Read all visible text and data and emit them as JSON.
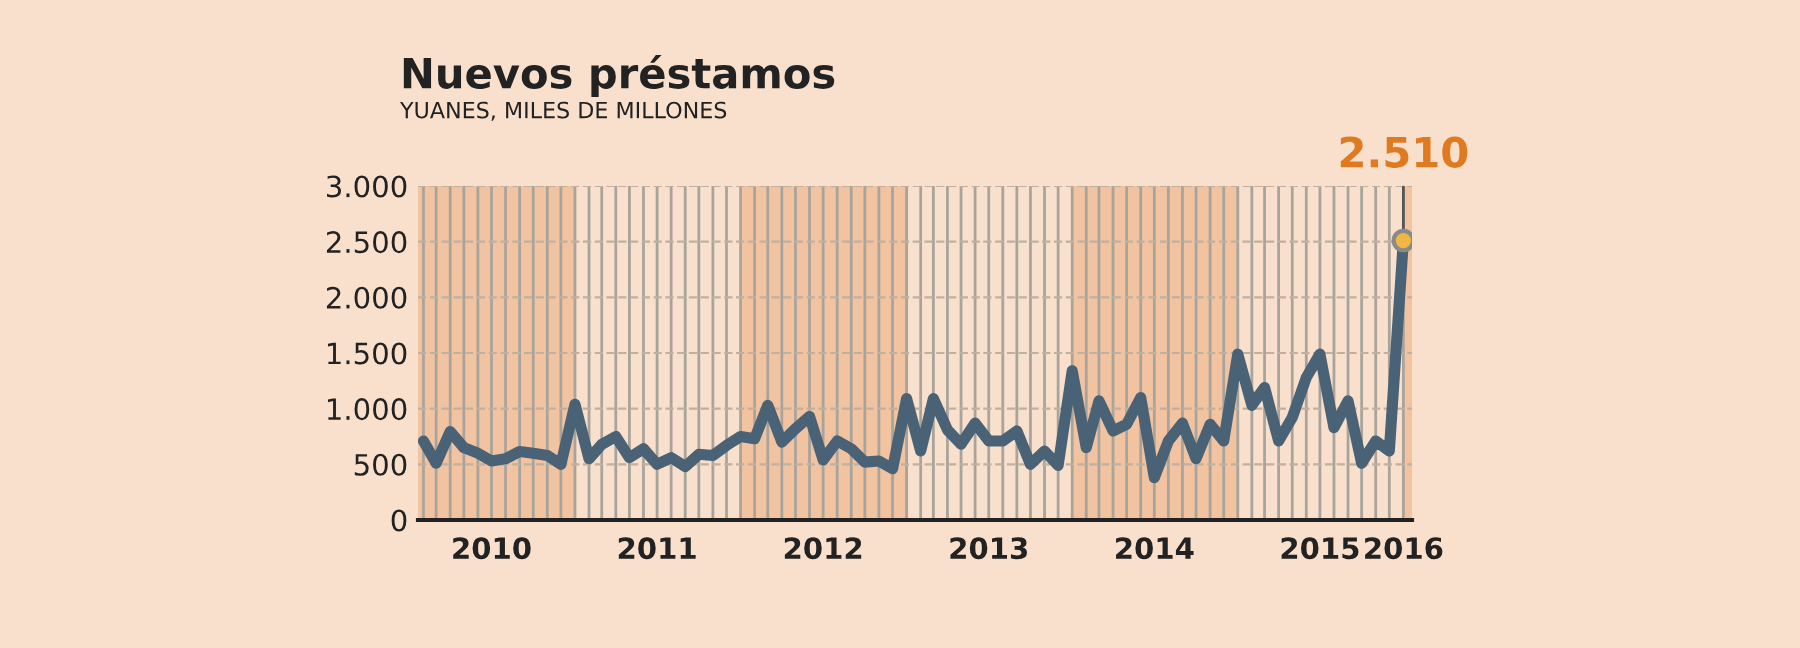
{
  "chart_data": {
    "type": "line",
    "title": "Nuevos préstamos",
    "subtitle": "YUANES, MILES DE MILLONES",
    "x": [
      "2010-02",
      "2010-03",
      "2010-04",
      "2010-05",
      "2010-06",
      "2010-07",
      "2010-08",
      "2010-09",
      "2010-10",
      "2010-11",
      "2010-12",
      "2011-01",
      "2011-02",
      "2011-03",
      "2011-04",
      "2011-05",
      "2011-06",
      "2011-07",
      "2011-08",
      "2011-09",
      "2011-10",
      "2011-11",
      "2011-12",
      "2012-01",
      "2012-02",
      "2012-03",
      "2012-04",
      "2012-05",
      "2012-06",
      "2012-07",
      "2012-08",
      "2012-09",
      "2012-10",
      "2012-11",
      "2012-12",
      "2013-01",
      "2013-02",
      "2013-03",
      "2013-04",
      "2013-05",
      "2013-06",
      "2013-07",
      "2013-08",
      "2013-09",
      "2013-10",
      "2013-11",
      "2013-12",
      "2014-01",
      "2014-02",
      "2014-03",
      "2014-04",
      "2014-05",
      "2014-06",
      "2014-07",
      "2014-08",
      "2014-09",
      "2014-10",
      "2014-11",
      "2014-12",
      "2015-01",
      "2015-02",
      "2015-03",
      "2015-04",
      "2015-05",
      "2015-06",
      "2015-07",
      "2015-08",
      "2015-09",
      "2015-10",
      "2015-11",
      "2015-12",
      "2016-01"
    ],
    "series": [
      {
        "color": "#4a6275",
        "values": [
          710,
          510,
          795,
          650,
          600,
          530,
          550,
          615,
          600,
          580,
          500,
          1040,
          550,
          680,
          750,
          560,
          640,
          500,
          560,
          480,
          590,
          580,
          670,
          750,
          730,
          1030,
          700,
          820,
          930,
          540,
          710,
          640,
          520,
          530,
          460,
          1090,
          620,
          1090,
          810,
          680,
          870,
          710,
          710,
          800,
          500,
          620,
          490,
          1340,
          650,
          1070,
          800,
          860,
          1100,
          380,
          710,
          870,
          550,
          860,
          710,
          1490,
          1030,
          1190,
          710,
          920,
          1280,
          1490,
          830,
          1070,
          510,
          710,
          620,
          2510
        ]
      }
    ],
    "xlim": [
      "2010-01-20",
      "2016-01-20"
    ],
    "ylim": [
      0,
      3000
    ],
    "yticks": [
      0,
      {
        "value": 500,
        "label": "500"
      },
      {
        "value": 1000,
        "label": "1.000"
      },
      {
        "value": 1500,
        "label": "1.500"
      },
      {
        "value": 2000,
        "label": "2.000"
      },
      {
        "value": 2500,
        "label": "2.500"
      },
      {
        "value": 3000,
        "label": "3.000"
      }
    ],
    "xticks": [
      {
        "value": "2010-02",
        "label": null
      },
      {
        "value": "2010-03",
        "label": null
      },
      {
        "value": "2010-04",
        "label": null
      },
      {
        "value": "2010-05",
        "label": null
      },
      {
        "value": "2010-06",
        "label": null
      },
      {
        "value": "2010-07",
        "label": "2010"
      },
      {
        "value": "2010-08",
        "label": null
      },
      {
        "value": "2010-09",
        "label": null
      },
      {
        "value": "2010-10",
        "label": null
      },
      {
        "value": "2010-11",
        "label": null
      },
      {
        "value": "2010-12",
        "label": null
      },
      {
        "value": "2011-01",
        "label": null
      },
      {
        "value": "2011-02",
        "label": null
      },
      {
        "value": "2011-03",
        "label": null
      },
      {
        "value": "2011-04",
        "label": null
      },
      {
        "value": "2011-05",
        "label": null
      },
      {
        "value": "2011-06",
        "label": null
      },
      {
        "value": "2011-07",
        "label": "2011"
      },
      {
        "value": "2011-08",
        "label": null
      },
      {
        "value": "2011-09",
        "label": null
      },
      {
        "value": "2011-10",
        "label": null
      },
      {
        "value": "2011-11",
        "label": null
      },
      {
        "value": "2011-12",
        "label": null
      },
      {
        "value": "2012-01",
        "label": null
      },
      {
        "value": "2012-02",
        "label": null
      },
      {
        "value": "2012-03",
        "label": null
      },
      {
        "value": "2012-04",
        "label": null
      },
      {
        "value": "2012-05",
        "label": null
      },
      {
        "value": "2012-06",
        "label": null
      },
      {
        "value": "2012-07",
        "label": "2012"
      },
      {
        "value": "2012-08",
        "label": null
      },
      {
        "value": "2012-09",
        "label": null
      },
      {
        "value": "2012-10",
        "label": null
      },
      {
        "value": "2012-11",
        "label": null
      },
      {
        "value": "2012-12",
        "label": null
      },
      {
        "value": "2013-01",
        "label": null
      },
      {
        "value": "2013-02",
        "label": null
      },
      {
        "value": "2013-03",
        "label": null
      },
      {
        "value": "2013-04",
        "label": null
      },
      {
        "value": "2013-05",
        "label": null
      },
      {
        "value": "2013-06",
        "label": null
      },
      {
        "value": "2013-07",
        "label": "2013"
      },
      {
        "value": "2013-08",
        "label": null
      },
      {
        "value": "2013-09",
        "label": null
      },
      {
        "value": "2013-10",
        "label": null
      },
      {
        "value": "2013-11",
        "label": null
      },
      {
        "value": "2013-12",
        "label": null
      },
      {
        "value": "2014-01",
        "label": null
      },
      {
        "value": "2014-02",
        "label": null
      },
      {
        "value": "2014-03",
        "label": null
      },
      {
        "value": "2014-04",
        "label": null
      },
      {
        "value": "2014-05",
        "label": null
      },
      {
        "value": "2014-06",
        "label": null
      },
      {
        "value": "2014-07",
        "label": "2014"
      },
      {
        "value": "2014-08",
        "label": null
      },
      {
        "value": "2014-09",
        "label": null
      },
      {
        "value": "2014-10",
        "label": null
      },
      {
        "value": "2014-11",
        "label": null
      },
      {
        "value": "2014-12",
        "label": null
      },
      {
        "value": "2015-01",
        "label": null
      },
      {
        "value": "2015-02",
        "label": null
      },
      {
        "value": "2015-03",
        "label": null
      },
      {
        "value": "2015-04",
        "label": null
      },
      {
        "value": "2015-05",
        "label": null
      },
      {
        "value": "2015-06",
        "label": null
      },
      {
        "value": "2015-07",
        "label": "2015"
      },
      {
        "value": "2015-08",
        "label": null
      },
      {
        "value": "2015-09",
        "label": null
      },
      {
        "value": "2015-10",
        "label": null
      },
      {
        "value": "2015-11",
        "label": null
      },
      {
        "value": "2015-12",
        "label": null
      },
      {
        "value": "2016-01",
        "label": "2016"
      }
    ],
    "bands": [
      {
        "axis": "x",
        "from": "2010-01-20",
        "to": "2011-01-01",
        "color": "#f2c3a1"
      },
      {
        "axis": "x",
        "from": "2012-01-01",
        "to": "2013-01-01",
        "color": "#f2c3a1"
      },
      {
        "axis": "x",
        "from": "2014-01-01",
        "to": "2015-01-01",
        "color": "#f2c3a1"
      },
      {
        "axis": "x",
        "from": "2016-01-01",
        "to": "2016-01-20",
        "color": "#f2c3a1"
      }
    ],
    "annotations": [
      {
        "text": "2.510",
        "x": "2016-01",
        "y": 2510
      }
    ],
    "grid": true,
    "marker": "none",
    "line_style": "solid",
    "legend": false
  }
}
